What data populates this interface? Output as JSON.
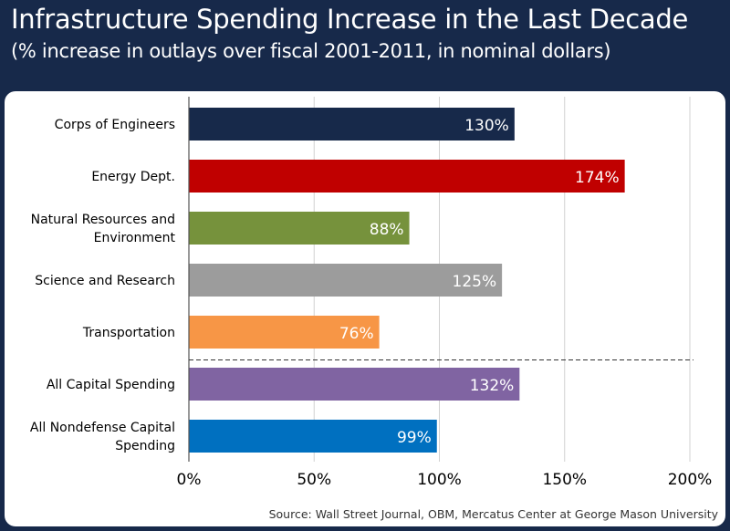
{
  "header": {
    "title": "Infrastructure Spending Increase in the Last Decade",
    "subtitle": "(% increase in outlays over fiscal 2001-2011, in nominal dollars)"
  },
  "source": "Source: Wall Street Journal, OBM, Mercatus Center at George Mason University",
  "colors": {
    "background": "#17294a",
    "grid": "#d0d0d0",
    "divider": "#333333"
  },
  "chart_data": {
    "type": "bar",
    "orientation": "horizontal",
    "title": "Infrastructure Spending Increase in the Last Decade",
    "subtitle": "(% increase in outlays over fiscal 2001-2011, in nominal dollars)",
    "xlabel": "",
    "ylabel": "",
    "xlim": [
      0,
      200
    ],
    "grid": true,
    "categories": [
      "Corps of Engineers",
      "Energy Dept.",
      "Natural Resources and Environment",
      "Science and Research",
      "Transportation",
      "All Capital Spending",
      "All Nondefense Capital Spending"
    ],
    "category_lines": [
      [
        "Corps of Engineers"
      ],
      [
        "Energy Dept."
      ],
      [
        "Natural Resources and",
        "Environment"
      ],
      [
        "Science and Research"
      ],
      [
        "Transportation"
      ],
      [
        "All Capital Spending"
      ],
      [
        "All Nondefense Capital",
        "Spending"
      ]
    ],
    "values": [
      130,
      174,
      88,
      125,
      76,
      132,
      99
    ],
    "data_labels": [
      "130%",
      "174%",
      "88%",
      "125%",
      "76%",
      "132%",
      "99%"
    ],
    "bar_colors": [
      "#17294a",
      "#c00000",
      "#76923c",
      "#9c9c9c",
      "#f79646",
      "#8064a2",
      "#0070c0"
    ],
    "xticks": [
      0,
      50,
      100,
      150,
      200
    ],
    "xtick_labels": [
      "0%",
      "50%",
      "100%",
      "150%",
      "200%"
    ],
    "divider_after_category": "Transportation"
  }
}
